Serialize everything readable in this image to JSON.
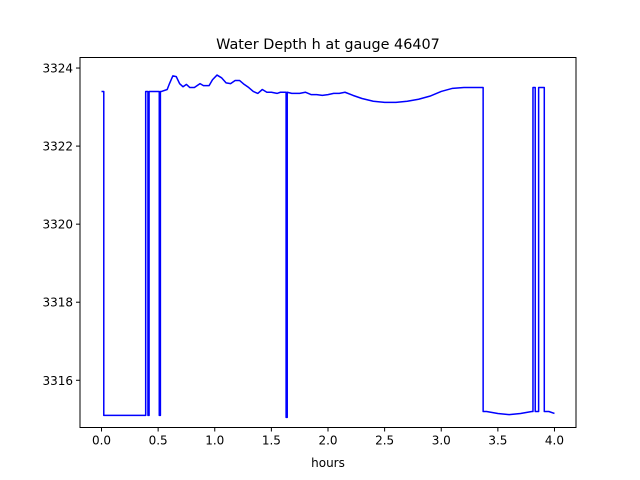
{
  "chart_data": {
    "type": "line",
    "title": "Water Depth h at gauge 46407",
    "xlabel": "hours",
    "ylabel": "",
    "xlim": [
      -0.19,
      4.19
    ],
    "ylim": [
      3314.79,
      3324.27
    ],
    "xticks": [
      0.0,
      0.5,
      1.0,
      1.5,
      2.0,
      2.5,
      3.0,
      3.5,
      4.0
    ],
    "xtick_labels": [
      "0.0",
      "0.5",
      "1.0",
      "1.5",
      "2.0",
      "2.5",
      "3.0",
      "3.5",
      "4.0"
    ],
    "yticks": [
      3316,
      3318,
      3320,
      3322,
      3324
    ],
    "ytick_labels": [
      "3316",
      "3318",
      "3320",
      "3322",
      "3324"
    ],
    "grid": false,
    "series": [
      {
        "color": "#0000ff",
        "x": [
          0.0,
          0.02,
          0.02,
          0.05,
          0.1,
          0.2,
          0.3,
          0.38,
          0.39,
          0.39,
          0.41,
          0.41,
          0.42,
          0.42,
          0.45,
          0.51,
          0.51,
          0.52,
          0.52,
          0.53,
          0.58,
          0.6,
          0.63,
          0.66,
          0.69,
          0.72,
          0.75,
          0.78,
          0.82,
          0.87,
          0.9,
          0.95,
          0.98,
          1.02,
          1.06,
          1.1,
          1.14,
          1.18,
          1.22,
          1.26,
          1.3,
          1.34,
          1.38,
          1.42,
          1.46,
          1.5,
          1.55,
          1.58,
          1.61,
          1.63,
          1.63,
          1.64,
          1.64,
          1.68,
          1.75,
          1.8,
          1.85,
          1.9,
          1.95,
          2.0,
          2.05,
          2.1,
          2.15,
          2.22,
          2.3,
          2.4,
          2.5,
          2.6,
          2.7,
          2.8,
          2.9,
          3.0,
          3.1,
          3.2,
          3.3,
          3.37,
          3.37,
          3.4,
          3.5,
          3.6,
          3.7,
          3.8,
          3.81,
          3.81,
          3.83,
          3.83,
          3.86,
          3.86,
          3.91,
          3.91,
          3.93,
          3.93,
          3.95,
          4.0
        ],
        "y": [
          3323.4,
          3323.4,
          3315.1,
          3315.1,
          3315.1,
          3315.1,
          3315.1,
          3315.1,
          3315.1,
          3323.4,
          3323.4,
          3315.1,
          3315.1,
          3323.4,
          3323.4,
          3323.4,
          3315.1,
          3315.1,
          3323.4,
          3323.4,
          3323.45,
          3323.6,
          3323.8,
          3323.78,
          3323.6,
          3323.52,
          3323.58,
          3323.5,
          3323.5,
          3323.6,
          3323.55,
          3323.55,
          3323.7,
          3323.82,
          3323.75,
          3323.62,
          3323.6,
          3323.68,
          3323.68,
          3323.58,
          3323.5,
          3323.4,
          3323.35,
          3323.45,
          3323.38,
          3323.38,
          3323.35,
          3323.38,
          3323.38,
          3323.38,
          3315.05,
          3315.05,
          3323.38,
          3323.35,
          3323.35,
          3323.38,
          3323.32,
          3323.32,
          3323.3,
          3323.32,
          3323.35,
          3323.35,
          3323.38,
          3323.3,
          3323.22,
          3323.15,
          3323.12,
          3323.12,
          3323.15,
          3323.2,
          3323.28,
          3323.4,
          3323.48,
          3323.5,
          3323.5,
          3323.5,
          3315.2,
          3315.2,
          3315.15,
          3315.12,
          3315.15,
          3315.2,
          3315.2,
          3323.5,
          3323.5,
          3315.2,
          3315.2,
          3323.5,
          3323.5,
          3315.2,
          3315.2,
          3315.2,
          3315.2,
          3315.15
        ]
      }
    ]
  }
}
